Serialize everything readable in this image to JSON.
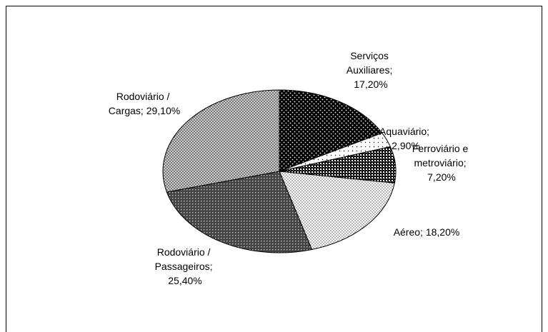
{
  "chart_data": {
    "type": "pie",
    "values": [
      17.2,
      2.9,
      7.2,
      18.2,
      25.4,
      29.1
    ],
    "value_labels": [
      "Serviços Auxiliares; 17,20%",
      "Aquaviário; 2,90%",
      "Ferroviário e metroviário; 7,20%",
      "Aéreo; 18,20%",
      "Rodoviário / Passageiros; 25,40%",
      "Rodoviário / Cargas; 29,10%"
    ]
  }
}
